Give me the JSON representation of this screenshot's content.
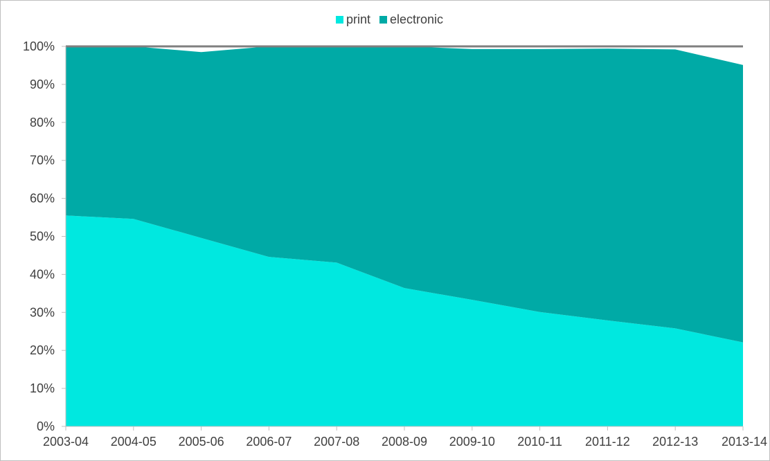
{
  "chart_data": {
    "type": "area",
    "stacked": true,
    "categories": [
      "2003-04",
      "2004-05",
      "2005-06",
      "2006-07",
      "2007-08",
      "2008-09",
      "2009-10",
      "2010-11",
      "2011-12",
      "2012-13",
      "2013-14"
    ],
    "series": [
      {
        "name": "print",
        "color": "#00e8e0",
        "values": [
          55.5,
          54.6,
          49.6,
          44.6,
          43.1,
          36.4,
          33.3,
          30.1,
          27.9,
          25.8,
          22.1
        ]
      },
      {
        "name": "electronic",
        "color": "#00aaa6",
        "values": [
          44.5,
          45.4,
          48.9,
          55.4,
          56.9,
          63.6,
          66.0,
          69.2,
          71.5,
          73.4,
          73.0
        ]
      }
    ],
    "total_line": {
      "color": "#7f7f7f",
      "values": [
        100,
        100,
        100,
        100,
        100,
        100,
        100,
        100,
        100,
        100,
        100
      ]
    },
    "yticks": [
      "0%",
      "10%",
      "20%",
      "30%",
      "40%",
      "50%",
      "60%",
      "70%",
      "80%",
      "90%",
      "100%"
    ],
    "ylim": [
      0,
      100
    ],
    "grid": false,
    "legend": "top-center",
    "title": "",
    "xlabel": "",
    "ylabel": ""
  }
}
